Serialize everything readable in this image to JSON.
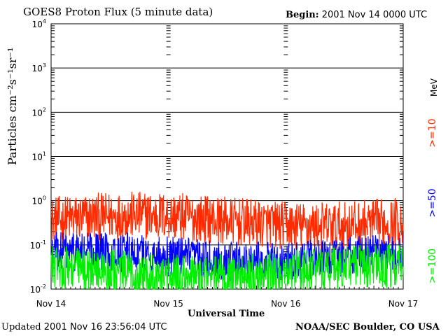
{
  "chart_data": {
    "type": "line",
    "title": "GOES8 Proton Flux (5 minute data)",
    "begin_label": "Begin:",
    "begin_value": "2001 Nov 14 0000 UTC",
    "ylabel": "Particles cm⁻²s⁻¹sr⁻¹",
    "xlabel": "Universal Time",
    "y_scale": "log",
    "ylim": [
      0.01,
      10000
    ],
    "y_ticks": [
      {
        "base": "10",
        "exp": "4",
        "value": 10000
      },
      {
        "base": "10",
        "exp": "3",
        "value": 1000
      },
      {
        "base": "10",
        "exp": "2",
        "value": 100
      },
      {
        "base": "10",
        "exp": "1",
        "value": 10
      },
      {
        "base": "10",
        "exp": "0",
        "value": 1
      },
      {
        "base": "10",
        "exp": "-1",
        "value": 0.1
      },
      {
        "base": "10",
        "exp": "-2",
        "value": 0.01
      }
    ],
    "x_ticks": [
      "Nov 14",
      "Nov 15",
      "Nov 16",
      "Nov 17"
    ],
    "xlim_days": [
      0,
      3
    ],
    "grid": true,
    "unit_label": "MeV",
    "series": [
      {
        "name": ">=10",
        "color": "#ff2a00",
        "level": 0.35,
        "spread_decades": 0.55
      },
      {
        "name": ">=50",
        "color": "#0000ff",
        "level": 0.055,
        "spread_decades": 0.45
      },
      {
        "name": ">=100",
        "color": "#00ee00",
        "level": 0.025,
        "spread_decades": 0.5
      }
    ]
  },
  "footer": {
    "updated_label": "Updated",
    "updated_value": "2001 Nov 16 23:56:04 UTC",
    "credit": "NOAA/SEC Boulder, CO USA"
  }
}
